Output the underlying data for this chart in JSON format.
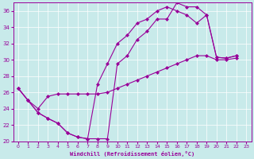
{
  "xlabel": "Windchill (Refroidissement éolien,°C)",
  "bg_color": "#c8eaea",
  "line_color": "#990099",
  "xlim": [
    -0.5,
    23.5
  ],
  "ylim": [
    20,
    37
  ],
  "yticks": [
    20,
    22,
    24,
    26,
    28,
    30,
    32,
    34,
    36
  ],
  "xticks": [
    0,
    1,
    2,
    3,
    4,
    5,
    6,
    7,
    8,
    9,
    10,
    11,
    12,
    13,
    14,
    15,
    16,
    17,
    18,
    19,
    20,
    21,
    22,
    23
  ],
  "line1_x": [
    0,
    1,
    2,
    3,
    4,
    5,
    6,
    7,
    8,
    9,
    10,
    11,
    12,
    13,
    14,
    15,
    16,
    17,
    18,
    19,
    20,
    21,
    22
  ],
  "line1_y": [
    26.5,
    25.0,
    23.5,
    22.8,
    22.2,
    21.0,
    20.5,
    20.3,
    20.3,
    20.3,
    29.5,
    30.5,
    32.5,
    33.5,
    35.0,
    35.0,
    37.0,
    36.5,
    36.5,
    35.5,
    30.3,
    30.2,
    30.5
  ],
  "line2_x": [
    0,
    1,
    2,
    3,
    4,
    5,
    6,
    7,
    8,
    9,
    10,
    11,
    12,
    13,
    14,
    15,
    16,
    17,
    18,
    19,
    20,
    21,
    22
  ],
  "line2_y": [
    26.5,
    25.0,
    23.5,
    22.8,
    22.2,
    21.0,
    20.5,
    20.3,
    27.0,
    29.5,
    32.0,
    33.0,
    34.5,
    35.0,
    36.0,
    36.5,
    36.0,
    35.5,
    34.5,
    35.5,
    30.3,
    30.2,
    30.5
  ],
  "line3_x": [
    0,
    1,
    2,
    3,
    4,
    5,
    6,
    7,
    8,
    9,
    10,
    11,
    12,
    13,
    14,
    15,
    16,
    17,
    18,
    19,
    20,
    21,
    22
  ],
  "line3_y": [
    26.5,
    25.0,
    24.0,
    25.5,
    25.8,
    25.8,
    25.8,
    25.8,
    25.8,
    26.0,
    26.5,
    27.0,
    27.5,
    28.0,
    28.5,
    29.0,
    29.5,
    30.0,
    30.5,
    30.5,
    30.0,
    30.0,
    30.2
  ]
}
